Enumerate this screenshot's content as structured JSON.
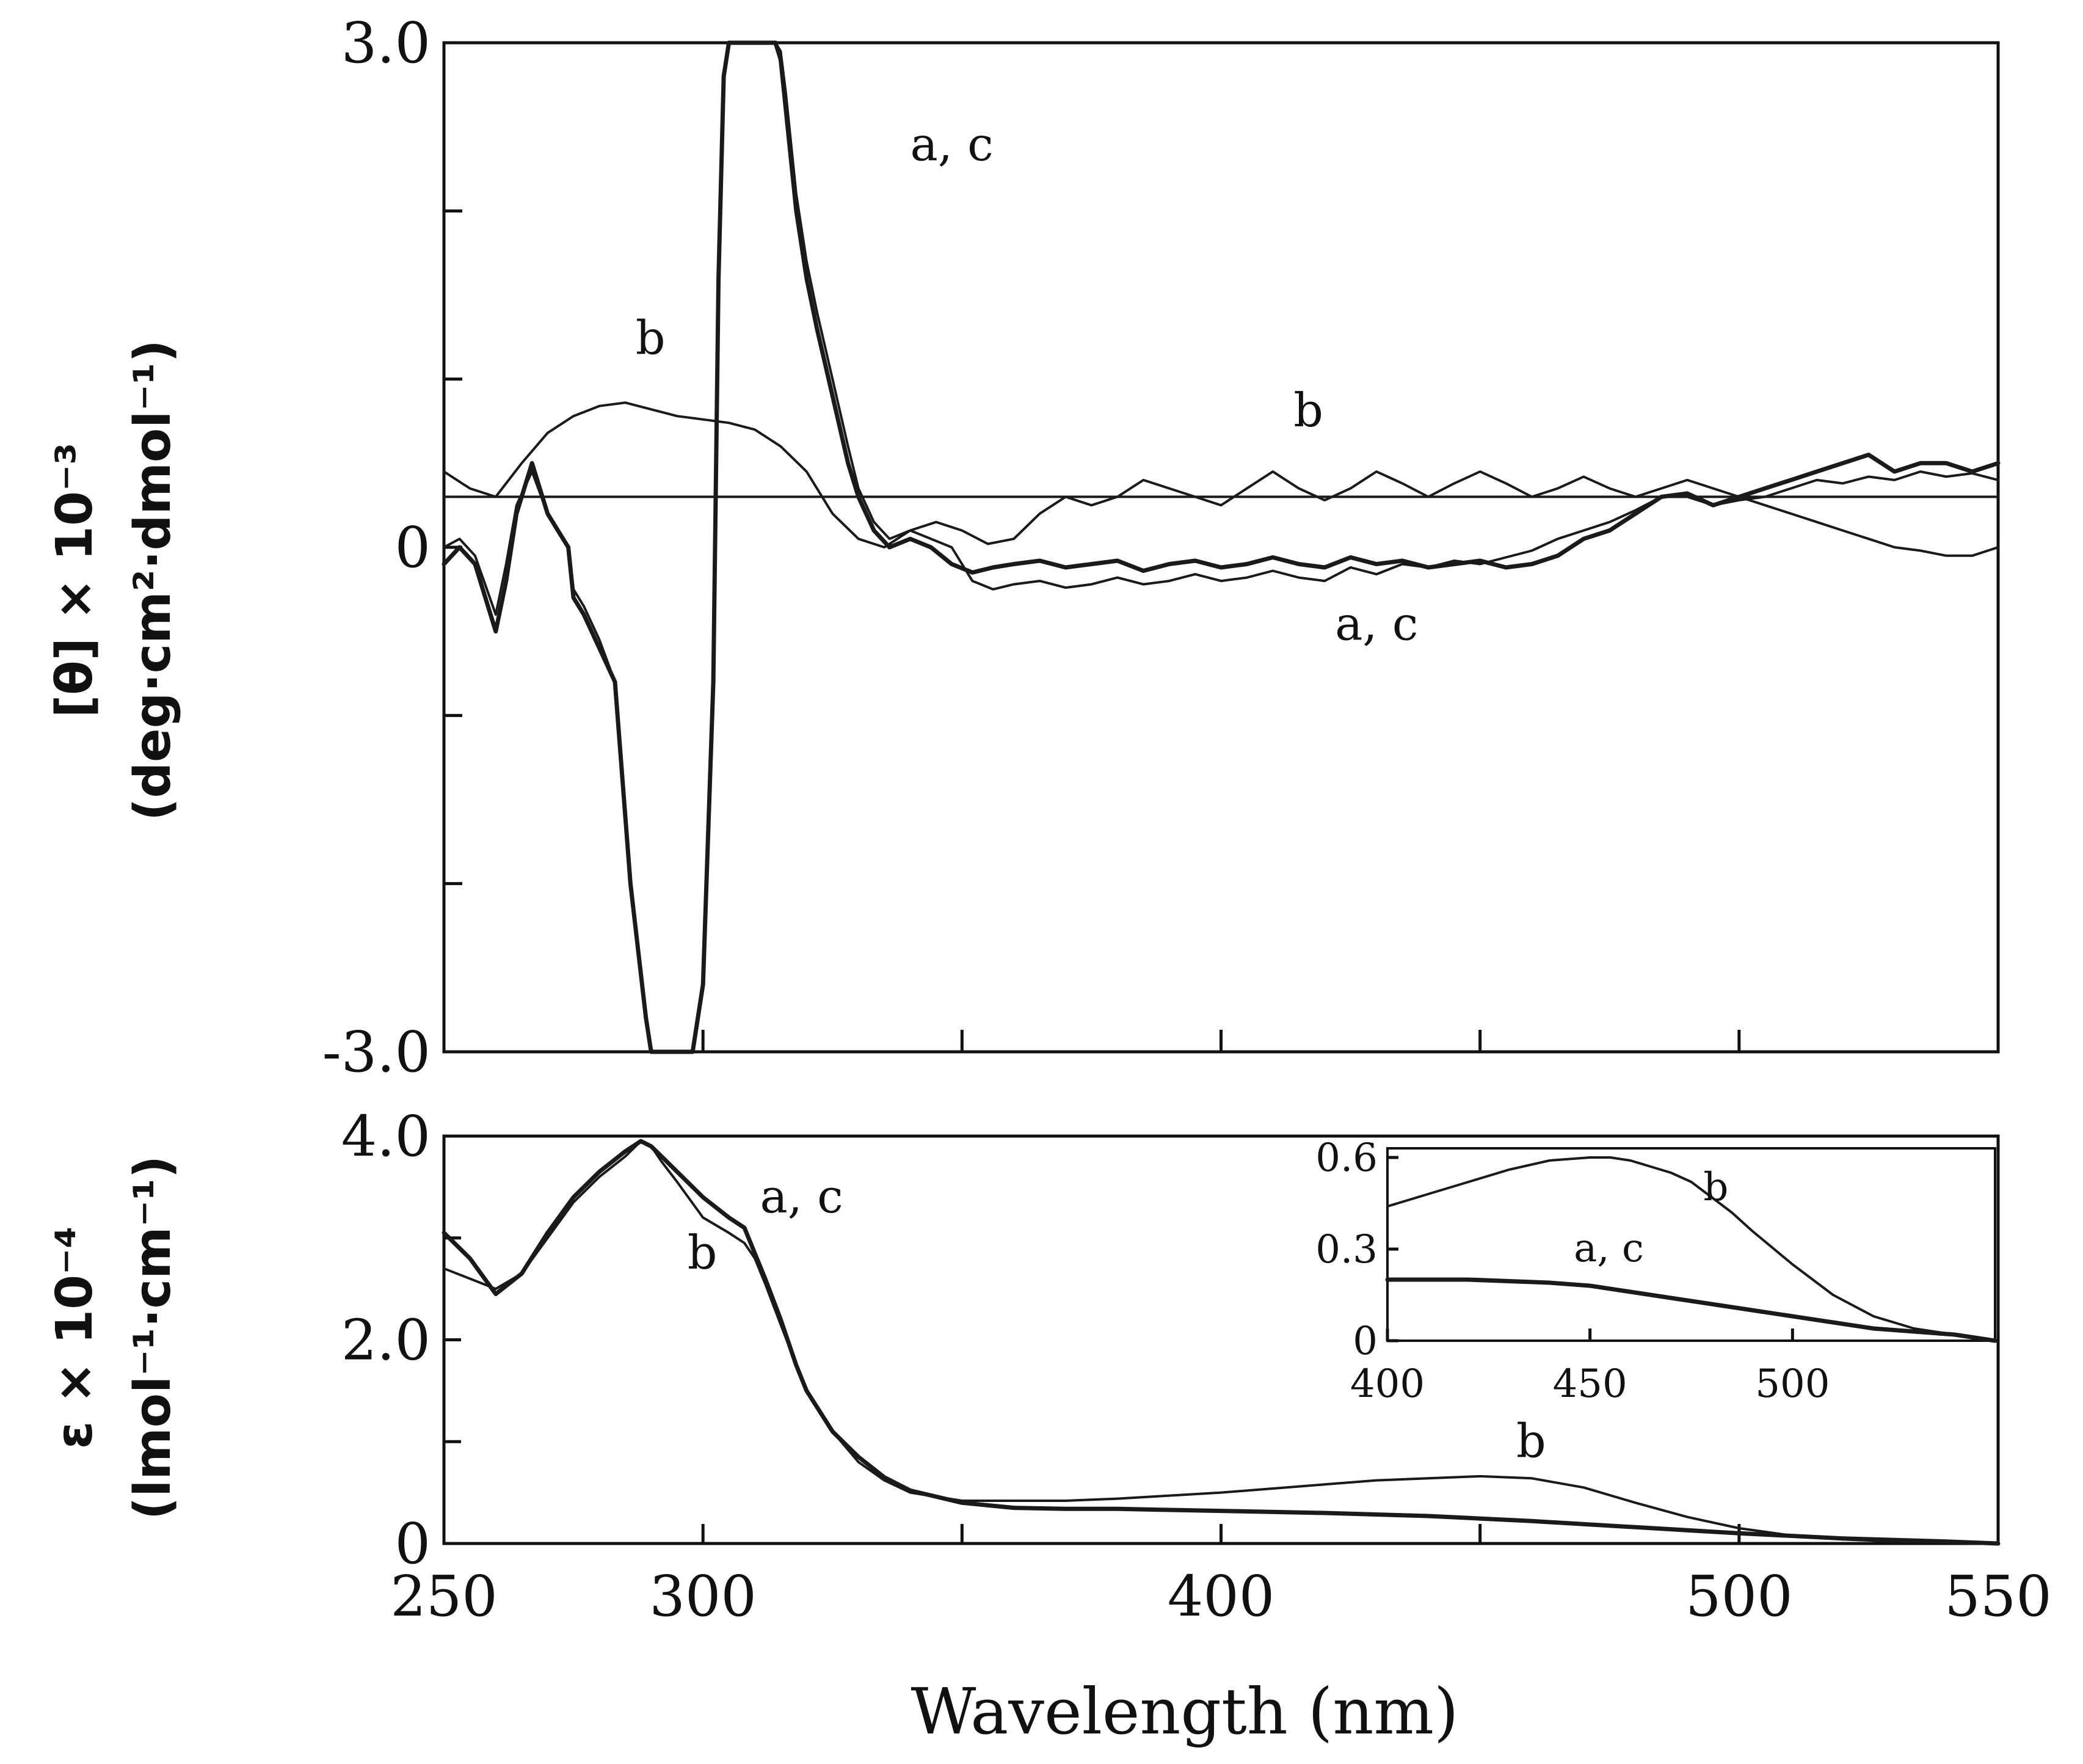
{
  "figure": {
    "x_axis_label": "Wavelength (nm)"
  },
  "chart_data": [
    {
      "id": "cd",
      "type": "line",
      "title": "",
      "ylabel_line1": "[θ] × 10⁻³",
      "ylabel_line2": "(deg·cm²·dmol⁻¹)",
      "xlim": [
        250,
        550
      ],
      "ylim": [
        -3.0,
        3.0
      ],
      "x_ticks": [
        250,
        300,
        350,
        400,
        450,
        500,
        550
      ],
      "y_ticks": [
        -3.0,
        -2.0,
        -1.0,
        0,
        1.0,
        2.0,
        3.0
      ],
      "y_tick_labels": [
        {
          "value": 3.0,
          "text": "3.0"
        },
        {
          "value": 0,
          "text": "0"
        },
        {
          "value": -3.0,
          "text": "-3.0"
        }
      ],
      "baseline": 0.3,
      "series": [
        {
          "name": "a",
          "width": "thick",
          "x": [
            250,
            253,
            256,
            260,
            262,
            264,
            267,
            270,
            272,
            274,
            275,
            277,
            280,
            283,
            286,
            289,
            290,
            292,
            295,
            298,
            300,
            302,
            303,
            304,
            305,
            306,
            308,
            310,
            312,
            313,
            314,
            315,
            316,
            317,
            318,
            320,
            322,
            325,
            328,
            330,
            333,
            336,
            340,
            344,
            348,
            352,
            356,
            360,
            365,
            370,
            375,
            380,
            385,
            390,
            395,
            400,
            405,
            410,
            415,
            420,
            425,
            430,
            435,
            440,
            445,
            450,
            455,
            460,
            465,
            470,
            475,
            480,
            485,
            490,
            495,
            500,
            505,
            510,
            515,
            520,
            525,
            530,
            535,
            540,
            545,
            550
          ],
          "y": [
            -0.1,
            0.0,
            -0.1,
            -0.5,
            -0.2,
            0.2,
            0.5,
            0.2,
            0.1,
            0.0,
            -0.3,
            -0.4,
            -0.6,
            -0.8,
            -2.0,
            -2.8,
            -3.0,
            -3.0,
            -3.0,
            -3.0,
            -2.6,
            -0.8,
            1.6,
            2.8,
            3.0,
            3.0,
            3.0,
            3.0,
            3.0,
            3.0,
            3.0,
            2.9,
            2.6,
            2.3,
            2.0,
            1.6,
            1.3,
            0.9,
            0.5,
            0.3,
            0.1,
            0.0,
            0.05,
            0.0,
            -0.1,
            -0.15,
            -0.12,
            -0.1,
            -0.08,
            -0.12,
            -0.1,
            -0.08,
            -0.14,
            -0.1,
            -0.08,
            -0.12,
            -0.1,
            -0.06,
            -0.1,
            -0.12,
            -0.06,
            -0.1,
            -0.08,
            -0.12,
            -0.1,
            -0.08,
            -0.12,
            -0.1,
            -0.05,
            0.05,
            0.1,
            0.2,
            0.3,
            0.32,
            0.25,
            0.3,
            0.35,
            0.4,
            0.45,
            0.5,
            0.55,
            0.45,
            0.5,
            0.5,
            0.45,
            0.5
          ]
        },
        {
          "name": "c",
          "width": "thin",
          "x": [
            250,
            253,
            256,
            260,
            262,
            264,
            267,
            270,
            272,
            274,
            275,
            277,
            280,
            283,
            286,
            289,
            290,
            292,
            295,
            298,
            300,
            302,
            303,
            304,
            305,
            306,
            308,
            310,
            312,
            313,
            314,
            315,
            316,
            317,
            318,
            320,
            322,
            325,
            328,
            330,
            333,
            336,
            340,
            344,
            348,
            352,
            356,
            360,
            365,
            370,
            375,
            380,
            385,
            390,
            395,
            400,
            405,
            410,
            415,
            420,
            425,
            430,
            435,
            440,
            445,
            450,
            455,
            460,
            465,
            470,
            475,
            480,
            485,
            490,
            495,
            500,
            505,
            510,
            515,
            520,
            525,
            530,
            535,
            540,
            545,
            550
          ],
          "y": [
            0.0,
            0.05,
            -0.05,
            -0.4,
            -0.1,
            0.25,
            0.45,
            0.2,
            0.1,
            0.0,
            -0.25,
            -0.35,
            -0.55,
            -0.8,
            -2.0,
            -2.8,
            -3.0,
            -3.0,
            -3.0,
            -3.0,
            -2.6,
            -0.8,
            1.6,
            2.8,
            3.0,
            3.0,
            3.0,
            3.0,
            3.0,
            3.0,
            3.0,
            2.95,
            2.7,
            2.4,
            2.1,
            1.7,
            1.4,
            1.0,
            0.6,
            0.35,
            0.15,
            0.05,
            0.1,
            0.05,
            0.0,
            -0.2,
            -0.25,
            -0.22,
            -0.2,
            -0.24,
            -0.22,
            -0.18,
            -0.22,
            -0.2,
            -0.16,
            -0.2,
            -0.18,
            -0.14,
            -0.18,
            -0.2,
            -0.12,
            -0.16,
            -0.1,
            -0.12,
            -0.08,
            -0.1,
            -0.06,
            -0.02,
            0.05,
            0.1,
            0.15,
            0.22,
            0.3,
            0.3,
            0.25,
            0.28,
            0.3,
            0.35,
            0.4,
            0.38,
            0.42,
            0.4,
            0.45,
            0.42,
            0.44,
            0.4
          ]
        },
        {
          "name": "b",
          "width": "thin",
          "x": [
            250,
            255,
            260,
            265,
            270,
            275,
            280,
            285,
            290,
            295,
            300,
            305,
            310,
            315,
            320,
            325,
            330,
            335,
            340,
            345,
            350,
            355,
            360,
            365,
            370,
            375,
            380,
            385,
            390,
            395,
            400,
            405,
            410,
            415,
            420,
            425,
            430,
            435,
            440,
            445,
            450,
            455,
            460,
            465,
            470,
            475,
            480,
            485,
            490,
            495,
            500,
            505,
            510,
            515,
            520,
            525,
            530,
            535,
            540,
            545,
            550
          ],
          "y": [
            0.45,
            0.35,
            0.3,
            0.5,
            0.68,
            0.78,
            0.84,
            0.86,
            0.82,
            0.78,
            0.76,
            0.74,
            0.7,
            0.6,
            0.45,
            0.2,
            0.05,
            0.0,
            0.1,
            0.15,
            0.1,
            0.02,
            0.05,
            0.2,
            0.3,
            0.25,
            0.3,
            0.4,
            0.35,
            0.3,
            0.25,
            0.35,
            0.45,
            0.35,
            0.28,
            0.35,
            0.45,
            0.38,
            0.3,
            0.38,
            0.45,
            0.38,
            0.3,
            0.35,
            0.42,
            0.35,
            0.3,
            0.35,
            0.4,
            0.35,
            0.3,
            0.25,
            0.2,
            0.15,
            0.1,
            0.05,
            0.0,
            -0.02,
            -0.05,
            -0.05,
            0.0
          ]
        }
      ],
      "annotations": [
        {
          "text": "a, c",
          "x": 340,
          "y": 2.3
        },
        {
          "text": "b",
          "x": 287,
          "y": 1.15
        },
        {
          "text": "b",
          "x": 414,
          "y": 0.72
        },
        {
          "text": "a, c",
          "x": 422,
          "y": -0.55
        }
      ]
    },
    {
      "id": "abs",
      "type": "line",
      "title": "",
      "ylabel_line1": "ε × 10⁻⁴",
      "ylabel_line2": "(lmol⁻¹·cm⁻¹)",
      "xlim": [
        250,
        550
      ],
      "ylim": [
        0,
        4.0
      ],
      "x_ticks": [
        250,
        300,
        350,
        400,
        450,
        500,
        550
      ],
      "x_tick_labels": [
        "250",
        "300",
        "400",
        "500",
        "550"
      ],
      "x_tick_label_values": [
        250,
        300,
        400,
        500,
        550
      ],
      "y_ticks": [
        0,
        1.0,
        2.0,
        3.0,
        4.0
      ],
      "y_tick_labels": [
        {
          "value": 4.0,
          "text": "4.0"
        },
        {
          "value": 2.0,
          "text": "2.0"
        },
        {
          "value": 0,
          "text": "0"
        }
      ],
      "series": [
        {
          "name": "a, c",
          "width": "thick",
          "x": [
            250,
            255,
            260,
            265,
            270,
            275,
            280,
            285,
            288,
            290,
            292,
            295,
            300,
            305,
            308,
            310,
            312,
            315,
            318,
            320,
            325,
            330,
            335,
            340,
            350,
            360,
            370,
            380,
            390,
            400,
            420,
            440,
            460,
            480,
            500,
            520,
            540,
            550
          ],
          "y": [
            3.05,
            2.8,
            2.45,
            2.65,
            3.05,
            3.4,
            3.65,
            3.85,
            3.95,
            3.9,
            3.8,
            3.65,
            3.4,
            3.2,
            3.1,
            2.85,
            2.6,
            2.2,
            1.75,
            1.5,
            1.1,
            0.85,
            0.65,
            0.52,
            0.4,
            0.35,
            0.34,
            0.34,
            0.33,
            0.32,
            0.3,
            0.27,
            0.22,
            0.16,
            0.1,
            0.05,
            0.02,
            0.0
          ]
        },
        {
          "name": "b",
          "width": "thin",
          "x": [
            250,
            255,
            260,
            265,
            270,
            275,
            280,
            285,
            288,
            290,
            292,
            295,
            300,
            305,
            308,
            310,
            312,
            315,
            318,
            320,
            325,
            330,
            335,
            340,
            350,
            360,
            370,
            380,
            390,
            400,
            410,
            420,
            430,
            440,
            450,
            460,
            470,
            480,
            490,
            500,
            510,
            520,
            530,
            540,
            550
          ],
          "y": [
            2.7,
            2.6,
            2.5,
            2.65,
            3.0,
            3.35,
            3.6,
            3.8,
            3.95,
            3.9,
            3.75,
            3.55,
            3.2,
            3.05,
            2.95,
            2.8,
            2.55,
            2.15,
            1.75,
            1.5,
            1.1,
            0.8,
            0.62,
            0.5,
            0.42,
            0.42,
            0.42,
            0.44,
            0.47,
            0.5,
            0.54,
            0.58,
            0.62,
            0.64,
            0.66,
            0.64,
            0.55,
            0.4,
            0.26,
            0.15,
            0.08,
            0.04,
            0.02,
            0.01,
            0.0
          ]
        }
      ],
      "annotations": [
        {
          "text": "a, c",
          "x": 311,
          "y": 3.25
        },
        {
          "text": "b",
          "x": 297,
          "y": 2.7
        },
        {
          "text": "b",
          "x": 457,
          "y": 0.85
        }
      ],
      "inset": {
        "type": "line",
        "xlim": [
          400,
          550
        ],
        "ylim": [
          0,
          0.6
        ],
        "x_ticks": [
          400,
          450,
          500
        ],
        "x_tick_labels": [
          "400",
          "450",
          "500"
        ],
        "y_ticks": [
          0,
          0.3,
          0.6
        ],
        "y_tick_labels": [
          "0",
          "0.3",
          "0.6"
        ],
        "series": [
          {
            "name": "b",
            "width": "thin",
            "x": [
              400,
              410,
              420,
              430,
              440,
              450,
              455,
              460,
              465,
              470,
              475,
              480,
              485,
              490,
              500,
              510,
              520,
              530,
              540,
              550
            ],
            "y": [
              0.44,
              0.48,
              0.52,
              0.56,
              0.59,
              0.61,
              0.6,
              0.59,
              0.57,
              0.55,
              0.52,
              0.47,
              0.42,
              0.36,
              0.25,
              0.15,
              0.08,
              0.04,
              0.02,
              0.0
            ]
          },
          {
            "name": "a, c",
            "width": "thick",
            "x": [
              400,
              420,
              440,
              450,
              460,
              470,
              480,
              490,
              500,
              510,
              520,
              530,
              540,
              550
            ],
            "y": [
              0.2,
              0.2,
              0.19,
              0.18,
              0.16,
              0.14,
              0.12,
              0.1,
              0.08,
              0.06,
              0.04,
              0.03,
              0.02,
              0.0
            ]
          }
        ],
        "annotations": [
          {
            "text": "b",
            "x": 478,
            "y": 0.46
          },
          {
            "text": "a, c",
            "x": 446,
            "y": 0.26
          }
        ]
      }
    }
  ]
}
